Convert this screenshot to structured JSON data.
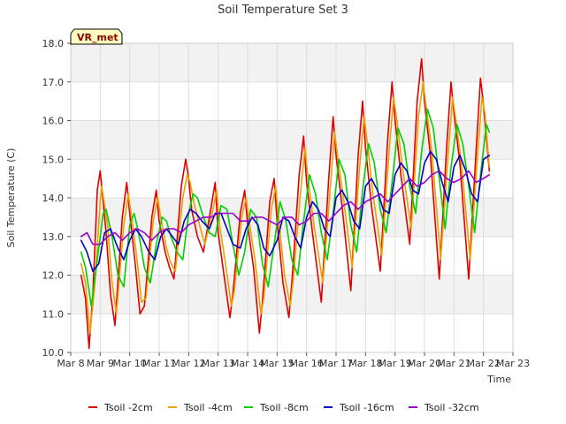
{
  "chart_data": {
    "type": "line",
    "title": "Soil Temperature Set 3",
    "xlabel": "Time",
    "ylabel": "Soil Temperature (C)",
    "badge": "VR_met",
    "ylim": [
      10.0,
      18.0
    ],
    "xlim_days": [
      8,
      23
    ],
    "y_ticks": [
      "10.0",
      "11.0",
      "12.0",
      "13.0",
      "14.0",
      "15.0",
      "16.0",
      "17.0",
      "18.0"
    ],
    "x_ticks": [
      "Mar 8",
      "Mar 9",
      "Mar 10",
      "Mar 11",
      "Mar 12",
      "Mar 13",
      "Mar 14",
      "Mar 15",
      "Mar 16",
      "Mar 17",
      "Mar 18",
      "Mar 19",
      "Mar 20",
      "Mar 21",
      "Mar 22",
      "Mar 23"
    ],
    "grid": true,
    "legend_position": "bottom",
    "series": [
      {
        "name": "Tsoil -2cm",
        "color": "#e00000",
        "x": [
          8.35,
          8.5,
          8.62,
          8.75,
          8.9,
          9.0,
          9.2,
          9.35,
          9.5,
          9.75,
          9.9,
          10.0,
          10.2,
          10.35,
          10.5,
          10.75,
          10.9,
          11.0,
          11.2,
          11.35,
          11.5,
          11.75,
          11.9,
          12.0,
          12.1,
          12.3,
          12.5,
          12.75,
          12.9,
          13.0,
          13.2,
          13.4,
          13.5,
          13.75,
          13.9,
          14.0,
          14.2,
          14.4,
          14.5,
          14.75,
          14.9,
          15.0,
          15.2,
          15.4,
          15.5,
          15.75,
          15.9,
          16.0,
          16.2,
          16.5,
          16.75,
          16.9,
          17.0,
          17.2,
          17.5,
          17.75,
          17.9,
          18.0,
          18.2,
          18.5,
          18.75,
          18.9,
          19.0,
          19.2,
          19.5,
          19.75,
          19.9,
          20.0,
          20.2,
          20.5,
          20.75,
          20.9,
          21.0,
          21.2,
          21.5,
          21.75,
          21.9,
          22.0,
          22.2
        ],
        "y": [
          12.0,
          11.4,
          10.1,
          11.5,
          14.2,
          14.7,
          13.1,
          11.5,
          10.7,
          13.5,
          14.4,
          13.6,
          12.2,
          11.0,
          11.2,
          13.5,
          14.2,
          13.4,
          12.6,
          12.2,
          11.9,
          14.3,
          15.0,
          14.5,
          13.7,
          13.0,
          12.6,
          13.7,
          14.4,
          13.1,
          12.0,
          10.9,
          11.5,
          13.6,
          14.2,
          13.3,
          12.2,
          10.5,
          11.3,
          13.9,
          14.5,
          13.4,
          11.8,
          10.9,
          11.8,
          14.6,
          15.6,
          14.4,
          13.1,
          11.3,
          14.5,
          16.1,
          15.1,
          13.8,
          11.6,
          15.1,
          16.5,
          15.3,
          13.8,
          12.1,
          15.5,
          17.0,
          16.0,
          14.6,
          12.8,
          16.5,
          17.6,
          16.5,
          15.1,
          11.9,
          15.3,
          17.0,
          16.2,
          14.9,
          11.9,
          15.2,
          17.1,
          16.4,
          14.7
        ]
      },
      {
        "name": "Tsoil -4cm",
        "color": "#f0a000",
        "x": [
          8.35,
          8.5,
          8.65,
          8.8,
          9.0,
          9.05,
          9.25,
          9.4,
          9.55,
          9.8,
          9.95,
          10.05,
          10.25,
          10.4,
          10.55,
          10.8,
          10.95,
          11.05,
          11.25,
          11.4,
          11.55,
          11.8,
          11.95,
          12.05,
          12.2,
          12.4,
          12.55,
          12.8,
          12.95,
          13.05,
          13.25,
          13.45,
          13.55,
          13.8,
          13.95,
          14.05,
          14.25,
          14.45,
          14.55,
          14.8,
          14.95,
          15.05,
          15.25,
          15.45,
          15.55,
          15.8,
          15.95,
          16.05,
          16.25,
          16.55,
          16.8,
          16.95,
          17.05,
          17.25,
          17.55,
          17.8,
          17.95,
          18.05,
          18.25,
          18.55,
          18.8,
          18.95,
          19.05,
          19.25,
          19.55,
          19.8,
          19.95,
          20.05,
          20.25,
          20.55,
          20.8,
          20.95,
          21.05,
          21.25,
          21.55,
          21.8,
          21.95,
          22.05,
          22.2
        ],
        "y": [
          12.3,
          11.8,
          10.5,
          11.6,
          13.9,
          14.3,
          13.3,
          11.8,
          11.0,
          13.3,
          14.1,
          13.6,
          12.4,
          11.3,
          11.4,
          13.4,
          14.0,
          13.5,
          12.7,
          12.3,
          12.1,
          14.0,
          14.6,
          14.4,
          13.8,
          13.2,
          12.8,
          13.6,
          14.2,
          13.3,
          12.3,
          11.2,
          11.6,
          13.5,
          14.0,
          13.4,
          12.4,
          11.0,
          11.4,
          13.7,
          14.3,
          13.5,
          12.0,
          11.2,
          11.9,
          14.2,
          15.3,
          14.5,
          13.3,
          11.8,
          14.2,
          15.7,
          15.1,
          14.0,
          12.2,
          14.8,
          16.1,
          15.5,
          14.1,
          12.5,
          15.2,
          16.6,
          16.1,
          14.8,
          13.2,
          16.1,
          17.0,
          16.4,
          15.2,
          12.4,
          15.1,
          16.6,
          16.1,
          14.9,
          12.4,
          15.1,
          16.6,
          16.2,
          14.8
        ]
      },
      {
        "name": "Tsoil -8cm",
        "color": "#00d000",
        "x": [
          8.35,
          8.5,
          8.7,
          8.9,
          9.1,
          9.2,
          9.4,
          9.6,
          9.8,
          10.0,
          10.15,
          10.3,
          10.5,
          10.7,
          10.9,
          11.1,
          11.25,
          11.4,
          11.6,
          11.8,
          12.0,
          12.15,
          12.3,
          12.5,
          12.7,
          12.9,
          13.1,
          13.3,
          13.5,
          13.7,
          13.9,
          14.1,
          14.3,
          14.5,
          14.7,
          14.9,
          15.1,
          15.3,
          15.5,
          15.7,
          15.9,
          16.1,
          16.3,
          16.5,
          16.7,
          16.9,
          17.1,
          17.3,
          17.5,
          17.7,
          17.9,
          18.1,
          18.3,
          18.5,
          18.7,
          18.9,
          19.1,
          19.3,
          19.5,
          19.7,
          19.9,
          20.1,
          20.3,
          20.5,
          20.7,
          20.9,
          21.1,
          21.3,
          21.5,
          21.7,
          21.9,
          22.1,
          22.2
        ],
        "y": [
          12.6,
          12.2,
          11.2,
          12.4,
          13.6,
          13.7,
          13.0,
          12.0,
          11.7,
          13.3,
          13.6,
          13.1,
          12.2,
          11.8,
          12.8,
          13.5,
          13.4,
          13.0,
          12.6,
          12.4,
          13.6,
          14.1,
          14.0,
          13.5,
          13.1,
          13.0,
          13.8,
          13.7,
          12.8,
          12.0,
          12.6,
          13.7,
          13.5,
          12.3,
          11.7,
          12.8,
          13.9,
          13.4,
          12.4,
          12.0,
          13.4,
          14.6,
          14.1,
          13.1,
          12.4,
          13.6,
          15.0,
          14.6,
          13.3,
          12.6,
          14.2,
          15.4,
          14.9,
          13.7,
          13.1,
          14.4,
          15.8,
          15.4,
          14.3,
          13.6,
          15.2,
          16.3,
          15.8,
          14.5,
          13.2,
          14.8,
          15.9,
          15.4,
          14.3,
          13.1,
          14.6,
          15.9,
          15.7
        ]
      },
      {
        "name": "Tsoil -16cm",
        "color": "#0000cc",
        "x": [
          8.35,
          8.55,
          8.75,
          8.95,
          9.15,
          9.35,
          9.6,
          9.8,
          10.0,
          10.2,
          10.4,
          10.65,
          10.85,
          11.05,
          11.25,
          11.45,
          11.65,
          11.85,
          12.05,
          12.25,
          12.45,
          12.7,
          12.9,
          13.1,
          13.3,
          13.5,
          13.75,
          13.95,
          14.15,
          14.35,
          14.55,
          14.75,
          15.0,
          15.2,
          15.4,
          15.6,
          15.8,
          16.0,
          16.2,
          16.4,
          16.6,
          16.8,
          17.0,
          17.2,
          17.4,
          17.6,
          17.8,
          18.0,
          18.2,
          18.4,
          18.6,
          18.8,
          19.0,
          19.2,
          19.4,
          19.6,
          19.8,
          20.0,
          20.2,
          20.4,
          20.6,
          20.8,
          21.0,
          21.2,
          21.4,
          21.6,
          21.8,
          22.0,
          22.2
        ],
        "y": [
          12.9,
          12.6,
          12.1,
          12.3,
          13.1,
          13.2,
          12.7,
          12.4,
          12.9,
          13.2,
          13.0,
          12.6,
          12.4,
          13.0,
          13.2,
          13.0,
          12.8,
          13.4,
          13.7,
          13.6,
          13.4,
          13.2,
          13.6,
          13.6,
          13.2,
          12.8,
          12.7,
          13.2,
          13.5,
          13.3,
          12.7,
          12.5,
          12.9,
          13.5,
          13.4,
          13.0,
          12.7,
          13.5,
          13.9,
          13.7,
          13.2,
          13.0,
          14.0,
          14.2,
          13.9,
          13.4,
          13.2,
          14.3,
          14.5,
          14.2,
          13.7,
          13.6,
          14.6,
          14.9,
          14.7,
          14.2,
          14.1,
          14.9,
          15.2,
          15.0,
          14.4,
          13.9,
          14.8,
          15.1,
          14.7,
          14.1,
          13.9,
          15.0,
          15.1
        ]
      },
      {
        "name": "Tsoil -32cm",
        "color": "#9900cc",
        "x": [
          8.35,
          8.55,
          8.75,
          9.0,
          9.25,
          9.5,
          9.75,
          10.0,
          10.25,
          10.5,
          10.75,
          11.0,
          11.25,
          11.5,
          11.75,
          12.0,
          12.25,
          12.5,
          12.75,
          13.0,
          13.25,
          13.5,
          13.75,
          14.0,
          14.25,
          14.5,
          14.75,
          15.0,
          15.25,
          15.5,
          15.75,
          16.0,
          16.25,
          16.5,
          16.75,
          17.0,
          17.25,
          17.5,
          17.75,
          18.0,
          18.25,
          18.5,
          18.75,
          19.0,
          19.25,
          19.5,
          19.75,
          20.0,
          20.25,
          20.5,
          20.75,
          21.0,
          21.25,
          21.5,
          21.75,
          22.0,
          22.2
        ],
        "y": [
          13.0,
          13.1,
          12.8,
          12.8,
          13.0,
          13.1,
          12.9,
          13.1,
          13.2,
          13.1,
          12.9,
          13.1,
          13.2,
          13.2,
          13.1,
          13.3,
          13.4,
          13.5,
          13.5,
          13.6,
          13.6,
          13.6,
          13.4,
          13.4,
          13.5,
          13.5,
          13.4,
          13.3,
          13.5,
          13.5,
          13.3,
          13.4,
          13.6,
          13.6,
          13.4,
          13.6,
          13.8,
          13.9,
          13.7,
          13.9,
          14.0,
          14.1,
          13.9,
          14.1,
          14.3,
          14.5,
          14.3,
          14.4,
          14.6,
          14.7,
          14.5,
          14.4,
          14.5,
          14.7,
          14.4,
          14.5,
          14.6
        ]
      }
    ]
  }
}
